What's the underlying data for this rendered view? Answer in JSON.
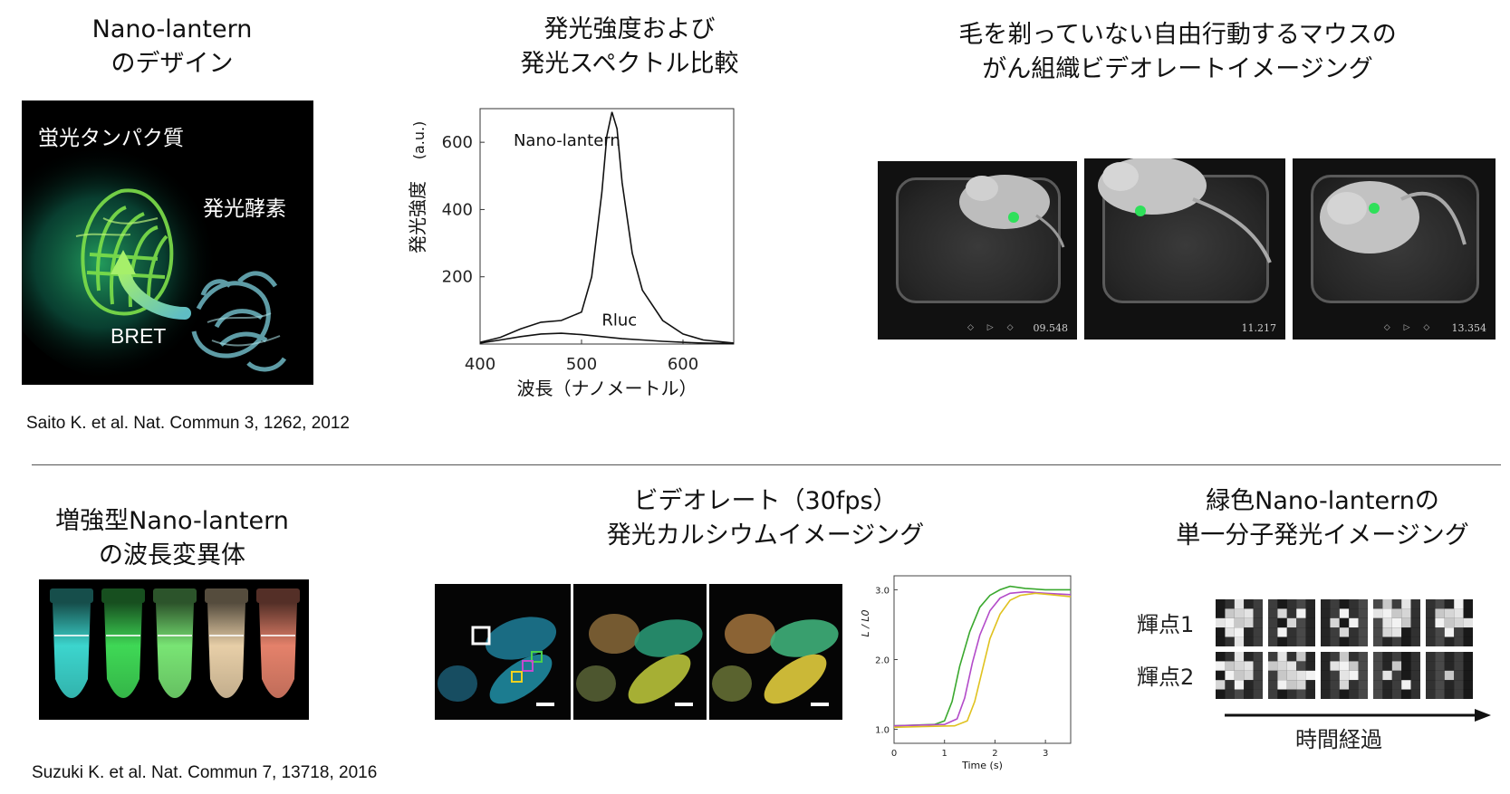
{
  "panels": {
    "design": {
      "title_line1": "Nano-lantern",
      "title_line2": "のデザイン",
      "label_fp": "蛍光タンパク質",
      "label_luc": "発光酵素",
      "label_bret": "BRET"
    },
    "spectrum": {
      "title_line1": "発光強度および",
      "title_line2": "発光スペクトル比較",
      "curve_label_nl": "Nano-lantern",
      "curve_label_rluc": "Rluc"
    },
    "mouse": {
      "title_line1": "毛を剃っていない自由行動するマウスの",
      "title_line2": "がん組織ビデオレートイメージング",
      "frames": [
        {
          "time": "09.548"
        },
        {
          "time": "11.217"
        },
        {
          "time": "13.354"
        }
      ]
    },
    "variants": {
      "title_line1": "増強型Nano-lantern",
      "title_line2": "の波長変異体",
      "tube_colors": [
        "#3fe0d8",
        "#42e35a",
        "#7ff07a",
        "#f3d9b0",
        "#f08870"
      ]
    },
    "calcium": {
      "title_line1": "ビデオレート（30fps）",
      "title_line2": "発光カルシウムイメージング"
    },
    "single": {
      "title_line1": "緑色Nano-lanternの",
      "title_line2": "単一分子発光イメージング",
      "row1_label": "輝点1",
      "row2_label": "輝点2",
      "time_arrow_label": "時間経過"
    }
  },
  "citations": {
    "top": "Saito K. et al. Nat. Commun 3, 1262, 2012",
    "bottom": "Suzuki K. et al. Nat. Commun 7, 13718, 2016"
  },
  "chart_data": [
    {
      "type": "line",
      "xlabel": "波長（ナノメートル）",
      "ylabel": "発光強度",
      "ylabel_unit": "(a.u.)",
      "xlim": [
        400,
        650
      ],
      "ylim": [
        0,
        700
      ],
      "xticks": [
        400,
        500,
        600
      ],
      "yticks": [
        200,
        400,
        600
      ],
      "series": [
        {
          "name": "Nano-lantern",
          "x": [
            400,
            420,
            440,
            460,
            480,
            500,
            510,
            520,
            525,
            530,
            535,
            540,
            550,
            560,
            580,
            600,
            620,
            650
          ],
          "y": [
            5,
            20,
            45,
            65,
            70,
            95,
            200,
            450,
            620,
            690,
            640,
            480,
            270,
            160,
            70,
            30,
            12,
            3
          ]
        },
        {
          "name": "Rluc",
          "x": [
            400,
            420,
            440,
            460,
            480,
            500,
            520,
            540,
            560,
            580,
            600,
            620,
            650
          ],
          "y": [
            3,
            12,
            22,
            30,
            32,
            28,
            22,
            16,
            12,
            8,
            5,
            3,
            1
          ]
        }
      ]
    },
    {
      "type": "line",
      "xlabel": "Time (s)",
      "ylabel": "L / L0",
      "xlim": [
        0,
        3.5
      ],
      "ylim": [
        0.8,
        3.2
      ],
      "xticks": [
        0,
        1,
        2,
        3
      ],
      "yticks": [
        1.0,
        2.0,
        3.0
      ],
      "series": [
        {
          "color": "#3aa82e",
          "x": [
            0,
            0.8,
            1.0,
            1.15,
            1.3,
            1.5,
            1.7,
            1.9,
            2.1,
            2.3,
            2.6,
            3.0,
            3.5
          ],
          "y": [
            1.05,
            1.07,
            1.12,
            1.4,
            1.9,
            2.4,
            2.75,
            2.92,
            3.0,
            3.05,
            3.02,
            3.0,
            3.0
          ]
        },
        {
          "color": "#b34bc9",
          "x": [
            0,
            1.0,
            1.25,
            1.4,
            1.55,
            1.7,
            1.9,
            2.1,
            2.3,
            2.6,
            3.0,
            3.5
          ],
          "y": [
            1.05,
            1.07,
            1.15,
            1.45,
            1.95,
            2.35,
            2.7,
            2.88,
            2.95,
            2.97,
            2.95,
            2.93
          ]
        },
        {
          "color": "#e0c21f",
          "x": [
            0,
            1.2,
            1.45,
            1.6,
            1.75,
            1.9,
            2.1,
            2.3,
            2.5,
            2.8,
            3.1,
            3.5
          ],
          "y": [
            1.03,
            1.05,
            1.12,
            1.4,
            1.85,
            2.3,
            2.65,
            2.85,
            2.92,
            2.95,
            2.93,
            2.9
          ]
        }
      ]
    }
  ]
}
